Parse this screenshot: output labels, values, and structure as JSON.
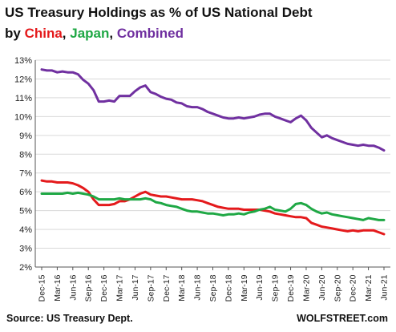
{
  "title": {
    "line1": "US Treasury Holdings as % of US National Debt",
    "by": "by ",
    "china": "China",
    "sep1": ", ",
    "japan": "Japan",
    "sep2": ", ",
    "combined": "Combined"
  },
  "footer": {
    "source": "Source: US Treasury Dept.",
    "brand": "WOLFSTREET.com"
  },
  "colors": {
    "china": "#e41a1c",
    "japan": "#1fa845",
    "combined": "#7030a0",
    "grid": "#d9d9d9",
    "axis": "#555555"
  },
  "chart_data": {
    "type": "line",
    "title": "US Treasury Holdings as % of US National Debt",
    "xlabel": "",
    "ylabel": "",
    "ylim": [
      2,
      13
    ],
    "yticks": [
      "2%",
      "3%",
      "4%",
      "5%",
      "6%",
      "7%",
      "8%",
      "9%",
      "10%",
      "11%",
      "12%",
      "13%"
    ],
    "grid": true,
    "legend": "title",
    "xtick_labels": [
      "Dec-15",
      "Mar-16",
      "Jun-16",
      "Sep-16",
      "Dec-16",
      "Mar-17",
      "Jun-17",
      "Sep-17",
      "Dec-17",
      "Mar-18",
      "Jun-18",
      "Sep-18",
      "Dec-18",
      "Mar-19",
      "Jun-19",
      "Sep-19",
      "Dec-19",
      "Mar-20",
      "Jun-20",
      "Sep-20",
      "Dec-20",
      "Mar-21",
      "Jun-21"
    ],
    "x": [
      "Dec-15",
      "Jan-16",
      "Feb-16",
      "Mar-16",
      "Apr-16",
      "May-16",
      "Jun-16",
      "Jul-16",
      "Aug-16",
      "Sep-16",
      "Oct-16",
      "Nov-16",
      "Dec-16",
      "Jan-17",
      "Feb-17",
      "Mar-17",
      "Apr-17",
      "May-17",
      "Jun-17",
      "Jul-17",
      "Aug-17",
      "Sep-17",
      "Oct-17",
      "Nov-17",
      "Dec-17",
      "Jan-18",
      "Feb-18",
      "Mar-18",
      "Apr-18",
      "May-18",
      "Jun-18",
      "Jul-18",
      "Aug-18",
      "Sep-18",
      "Oct-18",
      "Nov-18",
      "Dec-18",
      "Jan-19",
      "Feb-19",
      "Mar-19",
      "Apr-19",
      "May-19",
      "Jun-19",
      "Jul-19",
      "Aug-19",
      "Sep-19",
      "Oct-19",
      "Nov-19",
      "Dec-19",
      "Jan-20",
      "Feb-20",
      "Mar-20",
      "Apr-20",
      "May-20",
      "Jun-20",
      "Jul-20",
      "Aug-20",
      "Sep-20",
      "Oct-20",
      "Nov-20",
      "Dec-20",
      "Jan-21",
      "Feb-21",
      "Mar-21",
      "Apr-21",
      "May-21",
      "Jun-21"
    ],
    "series": [
      {
        "name": "China",
        "color": "#e41a1c",
        "values": [
          6.6,
          6.55,
          6.55,
          6.5,
          6.5,
          6.5,
          6.45,
          6.35,
          6.2,
          6.0,
          5.6,
          5.3,
          5.3,
          5.3,
          5.35,
          5.5,
          5.5,
          5.6,
          5.75,
          5.9,
          6.0,
          5.85,
          5.8,
          5.75,
          5.75,
          5.7,
          5.65,
          5.6,
          5.6,
          5.6,
          5.55,
          5.5,
          5.4,
          5.3,
          5.2,
          5.15,
          5.1,
          5.1,
          5.1,
          5.05,
          5.05,
          5.05,
          5.05,
          5.0,
          4.95,
          4.85,
          4.8,
          4.75,
          4.7,
          4.65,
          4.65,
          4.6,
          4.35,
          4.25,
          4.15,
          4.1,
          4.05,
          4.0,
          3.95,
          3.9,
          3.95,
          3.9,
          3.95,
          3.95,
          3.95,
          3.85,
          3.75
        ]
      },
      {
        "name": "Japan",
        "color": "#1fa845",
        "values": [
          5.9,
          5.9,
          5.9,
          5.9,
          5.9,
          5.95,
          5.9,
          5.95,
          5.9,
          5.85,
          5.75,
          5.6,
          5.6,
          5.6,
          5.6,
          5.65,
          5.6,
          5.6,
          5.6,
          5.6,
          5.65,
          5.6,
          5.45,
          5.4,
          5.3,
          5.25,
          5.2,
          5.1,
          5.0,
          4.95,
          4.95,
          4.9,
          4.85,
          4.85,
          4.8,
          4.75,
          4.8,
          4.8,
          4.85,
          4.8,
          4.9,
          4.95,
          5.05,
          5.1,
          5.2,
          5.05,
          5.0,
          4.95,
          5.1,
          5.35,
          5.4,
          5.3,
          5.1,
          4.95,
          4.85,
          4.9,
          4.8,
          4.75,
          4.7,
          4.65,
          4.6,
          4.55,
          4.5,
          4.6,
          4.55,
          4.5,
          4.5
        ]
      },
      {
        "name": "Combined",
        "color": "#7030a0",
        "values": [
          12.5,
          12.45,
          12.45,
          12.35,
          12.4,
          12.35,
          12.35,
          12.25,
          11.95,
          11.75,
          11.4,
          10.8,
          10.8,
          10.85,
          10.8,
          11.1,
          11.1,
          11.1,
          11.35,
          11.55,
          11.65,
          11.3,
          11.2,
          11.05,
          10.95,
          10.9,
          10.75,
          10.7,
          10.55,
          10.5,
          10.5,
          10.4,
          10.25,
          10.15,
          10.05,
          9.95,
          9.9,
          9.9,
          9.95,
          9.9,
          9.95,
          10.0,
          10.1,
          10.15,
          10.15,
          10.0,
          9.9,
          9.8,
          9.7,
          9.9,
          10.05,
          9.8,
          9.4,
          9.15,
          8.9,
          9.0,
          8.85,
          8.75,
          8.65,
          8.55,
          8.5,
          8.45,
          8.5,
          8.45,
          8.45,
          8.35,
          8.2
        ]
      }
    ]
  }
}
